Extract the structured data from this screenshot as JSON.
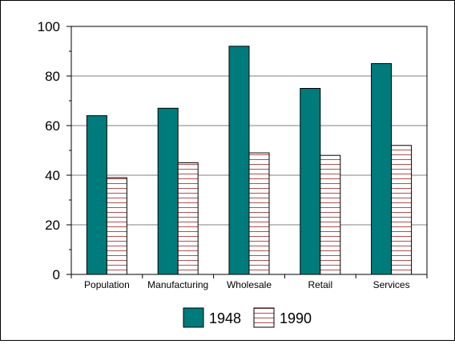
{
  "chart_data": {
    "type": "bar",
    "categories": [
      "Population",
      "Manufacturing",
      "Wholesale",
      "Retail",
      "Services"
    ],
    "series": [
      {
        "name": "1948",
        "values": [
          64,
          67,
          92,
          75,
          85
        ],
        "color": "#007B7B",
        "fill": "solid"
      },
      {
        "name": "1990",
        "values": [
          39,
          45,
          49,
          48,
          52
        ],
        "color": "#B05050",
        "fill": "horizontal-hatch"
      }
    ],
    "title": "",
    "xlabel": "",
    "ylabel": "",
    "ylim": [
      0,
      100
    ],
    "yticks": [
      0,
      20,
      40,
      60,
      80,
      100
    ],
    "grid": true,
    "legend_position": "bottom-center"
  }
}
